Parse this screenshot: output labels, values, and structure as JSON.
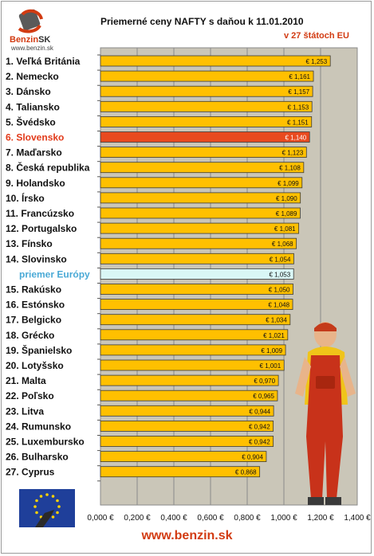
{
  "header": {
    "title": "Priemerné ceny NAFTY s daňou k 11.01.2010",
    "subtitle": "v 27 štátoch EU"
  },
  "logo": {
    "brand": "Benzin",
    "brand_suffix": "SK",
    "url": "www.benzin.sk"
  },
  "footer": {
    "url": "www.benzin.sk"
  },
  "colors": {
    "bar": "#ffc000",
    "highlight": "#e84a1f",
    "average": "#d9f7f5",
    "plot_bg": "#cac6b8"
  },
  "chart_data": {
    "type": "bar",
    "orientation": "horizontal",
    "title": "Priemerné ceny NAFTY s daňou k 11.01.2010",
    "subtitle": "v 27 štátoch EU",
    "categories": [
      "1. Veľká Británia",
      "2. Nemecko",
      "3. Dánsko",
      "4. Taliansko",
      "5. Švédsko",
      "6. Slovensko",
      "7. Maďarsko",
      "8. Česká republika",
      "9. Holandsko",
      "10. Írsko",
      "11. Francúzsko",
      "12. Portugalsko",
      "13. Fínsko",
      "14. Slovinsko",
      "priemer Európy",
      "15. Rakúsko",
      "16. Estónsko",
      "17. Belgicko",
      "18. Grécko",
      "19. Španielsko",
      "20. Lotyšsko",
      "21. Malta",
      "22. Poľsko",
      "23. Litva",
      "24. Rumunsko",
      "25. Luxembursko",
      "26. Bulharsko",
      "27. Cyprus"
    ],
    "values": [
      1.253,
      1.161,
      1.157,
      1.153,
      1.151,
      1.14,
      1.123,
      1.108,
      1.099,
      1.09,
      1.089,
      1.081,
      1.068,
      1.054,
      1.053,
      1.05,
      1.048,
      1.034,
      1.021,
      1.009,
      1.001,
      0.97,
      0.965,
      0.944,
      0.942,
      0.942,
      0.904,
      0.868
    ],
    "value_labels": [
      "€ 1,253",
      "€ 1,161",
      "€ 1,157",
      "€ 1,153",
      "€ 1,151",
      "€ 1,140",
      "€ 1,123",
      "€ 1,108",
      "€ 1,099",
      "€ 1,090",
      "€ 1,089",
      "€ 1,081",
      "€ 1,068",
      "€ 1,054",
      "€ 1,053",
      "€ 1,050",
      "€ 1,048",
      "€ 1,034",
      "€ 1,021",
      "€ 1,009",
      "€ 1,001",
      "€ 0,970",
      "€ 0,965",
      "€ 0,944",
      "€ 0,942",
      "€ 0,942",
      "€ 0,904",
      "€ 0,868"
    ],
    "highlight_index": 5,
    "average_index": 14,
    "xlim": [
      0,
      1.4
    ],
    "xticks": [
      0,
      0.2,
      0.4,
      0.6,
      0.8,
      1.0,
      1.2,
      1.4
    ],
    "xtick_labels": [
      "0,000 €",
      "0,200 €",
      "0,400 €",
      "0,600 €",
      "0,800 €",
      "1,000 €",
      "1,200 €",
      "1,400 €"
    ],
    "grid": true,
    "legend": "none"
  }
}
